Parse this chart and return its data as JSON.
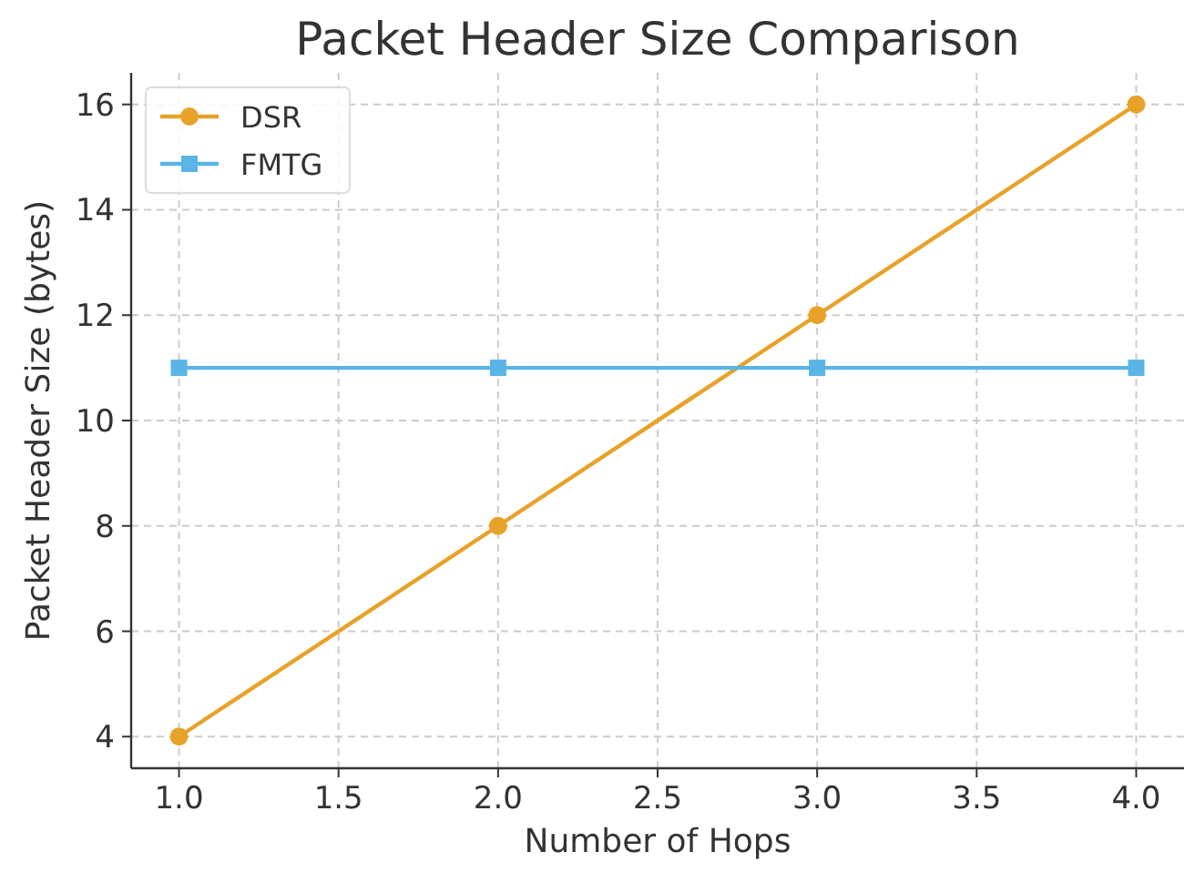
{
  "chart_data": {
    "type": "line",
    "title": "Packet Header Size Comparison",
    "xlabel": "Number of Hops",
    "ylabel": "Packet Header Size (bytes)",
    "x": [
      1,
      2,
      3,
      4
    ],
    "series": [
      {
        "name": "DSR",
        "color": "#e8a229",
        "values": [
          4,
          8,
          12,
          16
        ],
        "marker": "circle"
      },
      {
        "name": "FMTG",
        "color": "#5ab4e6",
        "values": [
          11,
          11,
          11,
          11
        ],
        "marker": "square"
      }
    ],
    "xlim": [
      0.85,
      4.15
    ],
    "ylim": [
      3.4,
      16.6
    ],
    "xticks": [
      {
        "value": 1,
        "label": "1.0"
      },
      {
        "value": 1.5,
        "label": "1.5"
      },
      {
        "value": 2,
        "label": "2.0"
      },
      {
        "value": 2.5,
        "label": "2.5"
      },
      {
        "value": 3,
        "label": "3.0"
      },
      {
        "value": 3.5,
        "label": "3.5"
      },
      {
        "value": 4,
        "label": "4.0"
      }
    ],
    "yticks": [
      4,
      6,
      8,
      10,
      12,
      14,
      16
    ],
    "grid": true,
    "legend": "top left",
    "line_style": "solid"
  }
}
